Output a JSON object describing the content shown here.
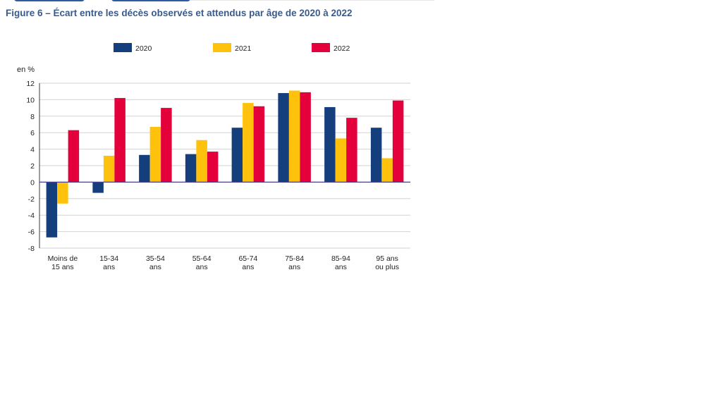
{
  "figure_title": "Figure 6 – Écart entre les décès observés et attendus par âge de 2020 à 2022",
  "chart_data": {
    "type": "bar",
    "unit_label": "en %",
    "categories": [
      [
        "Moins de",
        "15 ans"
      ],
      [
        "15-34",
        "ans"
      ],
      [
        "35-54",
        "ans"
      ],
      [
        "55-64",
        "ans"
      ],
      [
        "65-74",
        "ans"
      ],
      [
        "75-84",
        "ans"
      ],
      [
        "85-94",
        "ans"
      ],
      [
        "95 ans",
        "ou plus"
      ]
    ],
    "series": [
      {
        "name": "2020",
        "color": "#143f7c",
        "values": [
          -6.7,
          -1.3,
          3.3,
          3.4,
          6.6,
          10.8,
          9.1,
          6.6
        ]
      },
      {
        "name": "2021",
        "color": "#fec20c",
        "values": [
          -2.6,
          3.2,
          6.7,
          5.1,
          9.6,
          11.1,
          5.3,
          2.9
        ]
      },
      {
        "name": "2022",
        "color": "#e4003b",
        "values": [
          6.3,
          10.2,
          9.0,
          3.7,
          9.2,
          10.9,
          7.8,
          9.9
        ]
      }
    ],
    "yticks": [
      12,
      10,
      8,
      6,
      4,
      2,
      0,
      -2,
      -4,
      -6,
      -8
    ],
    "ylim": [
      -8,
      12
    ],
    "grid": true,
    "legend_position": "top"
  }
}
